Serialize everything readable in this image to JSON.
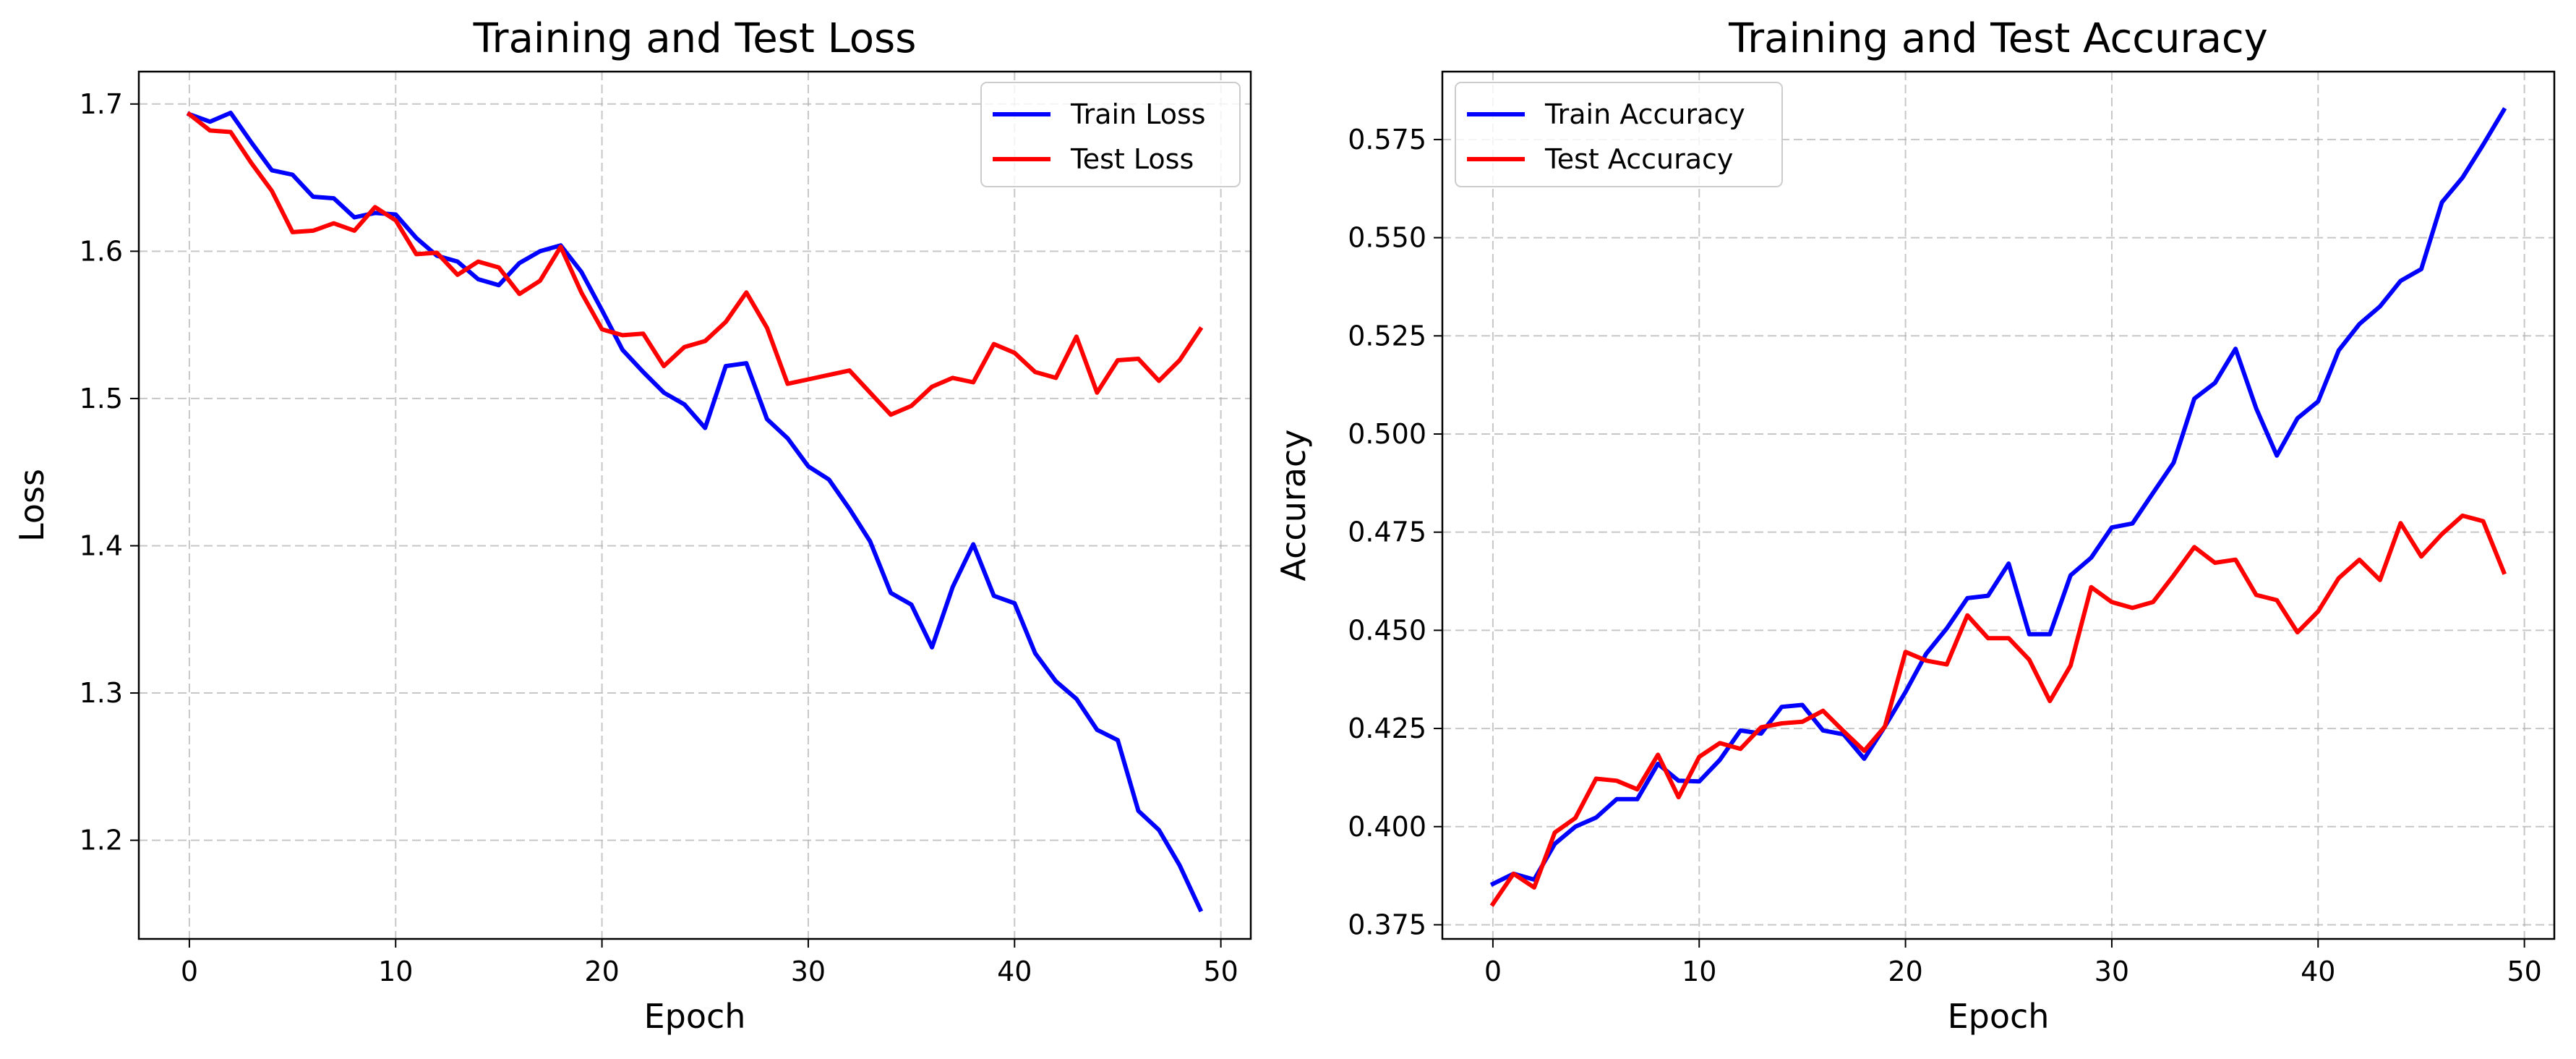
{
  "chart_data": [
    {
      "type": "line",
      "title": "Training and Test Loss",
      "xlabel": "Epoch",
      "ylabel": "Loss",
      "xlim": [
        -2.45,
        51.45
      ],
      "ylim": [
        1.133,
        1.722
      ],
      "xticks": [
        0,
        10,
        20,
        30,
        40,
        50
      ],
      "yticks": [
        1.2,
        1.3,
        1.4,
        1.5,
        1.6,
        1.7
      ],
      "ytick_labels": [
        "1.2",
        "1.3",
        "1.4",
        "1.5",
        "1.6",
        "1.7"
      ],
      "grid": true,
      "legend_position": "top-right",
      "x": [
        0,
        1,
        2,
        3,
        4,
        5,
        6,
        7,
        8,
        9,
        10,
        11,
        12,
        13,
        14,
        15,
        16,
        17,
        18,
        19,
        20,
        21,
        22,
        23,
        24,
        25,
        26,
        27,
        28,
        29,
        30,
        31,
        32,
        33,
        34,
        35,
        36,
        37,
        38,
        39,
        40,
        41,
        42,
        43,
        44,
        45,
        46,
        47,
        48,
        49
      ],
      "series": [
        {
          "name": "Train Loss",
          "color": "#0000ff",
          "values": [
            1.693,
            1.688,
            1.694,
            1.674,
            1.655,
            1.652,
            1.637,
            1.636,
            1.623,
            1.626,
            1.625,
            1.609,
            1.597,
            1.593,
            1.581,
            1.577,
            1.592,
            1.6,
            1.604,
            1.586,
            1.56,
            1.533,
            1.518,
            1.504,
            1.496,
            1.48,
            1.522,
            1.524,
            1.486,
            1.473,
            1.454,
            1.445,
            1.425,
            1.403,
            1.368,
            1.36,
            1.331,
            1.372,
            1.401,
            1.366,
            1.361,
            1.327,
            1.308,
            1.296,
            1.275,
            1.268,
            1.22,
            1.207,
            1.183,
            1.153
          ]
        },
        {
          "name": "Test Loss",
          "color": "#ff0000",
          "values": [
            1.693,
            1.682,
            1.681,
            1.66,
            1.641,
            1.613,
            1.614,
            1.619,
            1.614,
            1.63,
            1.621,
            1.598,
            1.599,
            1.584,
            1.593,
            1.589,
            1.571,
            1.58,
            1.603,
            1.572,
            1.547,
            1.543,
            1.544,
            1.522,
            1.535,
            1.539,
            1.552,
            1.572,
            1.548,
            1.51,
            1.513,
            1.516,
            1.519,
            1.504,
            1.489,
            1.495,
            1.508,
            1.514,
            1.511,
            1.537,
            1.531,
            1.518,
            1.514,
            1.542,
            1.504,
            1.526,
            1.527,
            1.512,
            1.526,
            1.547
          ]
        }
      ]
    },
    {
      "type": "line",
      "title": "Training and Test Accuracy",
      "xlabel": "Epoch",
      "ylabel": "Accuracy",
      "xlim": [
        -2.45,
        51.45
      ],
      "ylim": [
        0.3714,
        0.5923
      ],
      "xticks": [
        0,
        10,
        20,
        30,
        40,
        50
      ],
      "yticks": [
        0.375,
        0.4,
        0.425,
        0.45,
        0.475,
        0.5,
        0.525,
        0.55,
        0.575
      ],
      "ytick_labels": [
        "0.375",
        "0.400",
        "0.425",
        "0.450",
        "0.475",
        "0.500",
        "0.525",
        "0.550",
        "0.575"
      ],
      "grid": true,
      "legend_position": "top-left",
      "x": [
        0,
        1,
        2,
        3,
        4,
        5,
        6,
        7,
        8,
        9,
        10,
        11,
        12,
        13,
        14,
        15,
        16,
        17,
        18,
        19,
        20,
        21,
        22,
        23,
        24,
        25,
        26,
        27,
        28,
        29,
        30,
        31,
        32,
        33,
        34,
        35,
        36,
        37,
        38,
        39,
        40,
        41,
        42,
        43,
        44,
        45,
        46,
        47,
        48,
        49
      ],
      "series": [
        {
          "name": "Train Accuracy",
          "color": "#0000ff",
          "values": [
            0.3854,
            0.388,
            0.3865,
            0.3956,
            0.4,
            0.4023,
            0.407,
            0.407,
            0.416,
            0.4117,
            0.4115,
            0.417,
            0.4245,
            0.4237,
            0.4305,
            0.431,
            0.4245,
            0.4235,
            0.4173,
            0.4255,
            0.4343,
            0.444,
            0.4505,
            0.4582,
            0.4588,
            0.467,
            0.449,
            0.449,
            0.464,
            0.4685,
            0.4762,
            0.4772,
            0.485,
            0.4927,
            0.509,
            0.513,
            0.5217,
            0.5065,
            0.4945,
            0.504,
            0.5083,
            0.5213,
            0.528,
            0.5325,
            0.539,
            0.542,
            0.559,
            0.5653,
            0.5737,
            0.5825
          ]
        },
        {
          "name": "Test Accuracy",
          "color": "#ff0000",
          "values": [
            0.3803,
            0.388,
            0.3845,
            0.3985,
            0.4022,
            0.4122,
            0.4117,
            0.4095,
            0.4183,
            0.4075,
            0.4178,
            0.4213,
            0.4198,
            0.4253,
            0.4263,
            0.4267,
            0.4295,
            0.4243,
            0.4193,
            0.4255,
            0.4445,
            0.4423,
            0.4413,
            0.4538,
            0.448,
            0.448,
            0.4425,
            0.432,
            0.441,
            0.461,
            0.4572,
            0.4557,
            0.4572,
            0.464,
            0.4712,
            0.4672,
            0.468,
            0.459,
            0.4577,
            0.4495,
            0.4548,
            0.4633,
            0.468,
            0.4628,
            0.4773,
            0.4688,
            0.4745,
            0.4792,
            0.4778,
            0.4648
          ]
        }
      ]
    }
  ]
}
